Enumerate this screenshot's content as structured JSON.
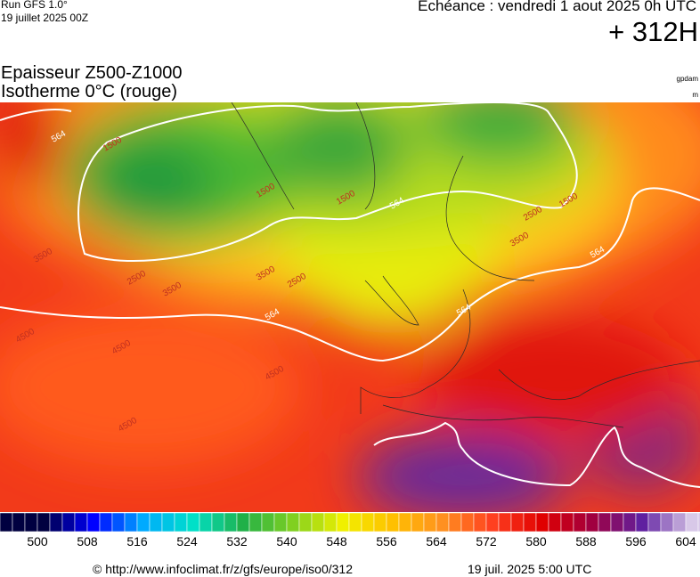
{
  "header": {
    "run": "Run GFS 1.0°",
    "date": "19 juillet 2025 00Z",
    "echeance": "Echéance : vendredi 1 aout 2025 0h UTC",
    "lead": "+ 312H"
  },
  "title": {
    "line1": "Epaisseur Z500-Z1000",
    "line2": "Isotherme 0°C (rouge)"
  },
  "units": {
    "thickness": "gpdam",
    "isotherm": "m"
  },
  "map": {
    "contour_labels": [
      "564",
      "564",
      "564",
      "564",
      "564",
      "1500",
      "1500",
      "1500",
      "1500",
      "2500",
      "2500",
      "2500",
      "3500",
      "3500",
      "3500",
      "3500",
      "4500",
      "4500",
      "4500",
      "4500"
    ]
  },
  "legend": {
    "labels": [
      500,
      508,
      516,
      524,
      532,
      540,
      548,
      556,
      564,
      572,
      580,
      588,
      596,
      604
    ]
  },
  "footer": {
    "source": "© http://www.infoclimat.fr/z/gfs/europe/iso0/312",
    "timestamp": "19 juil. 2025  5:00 UTC"
  }
}
